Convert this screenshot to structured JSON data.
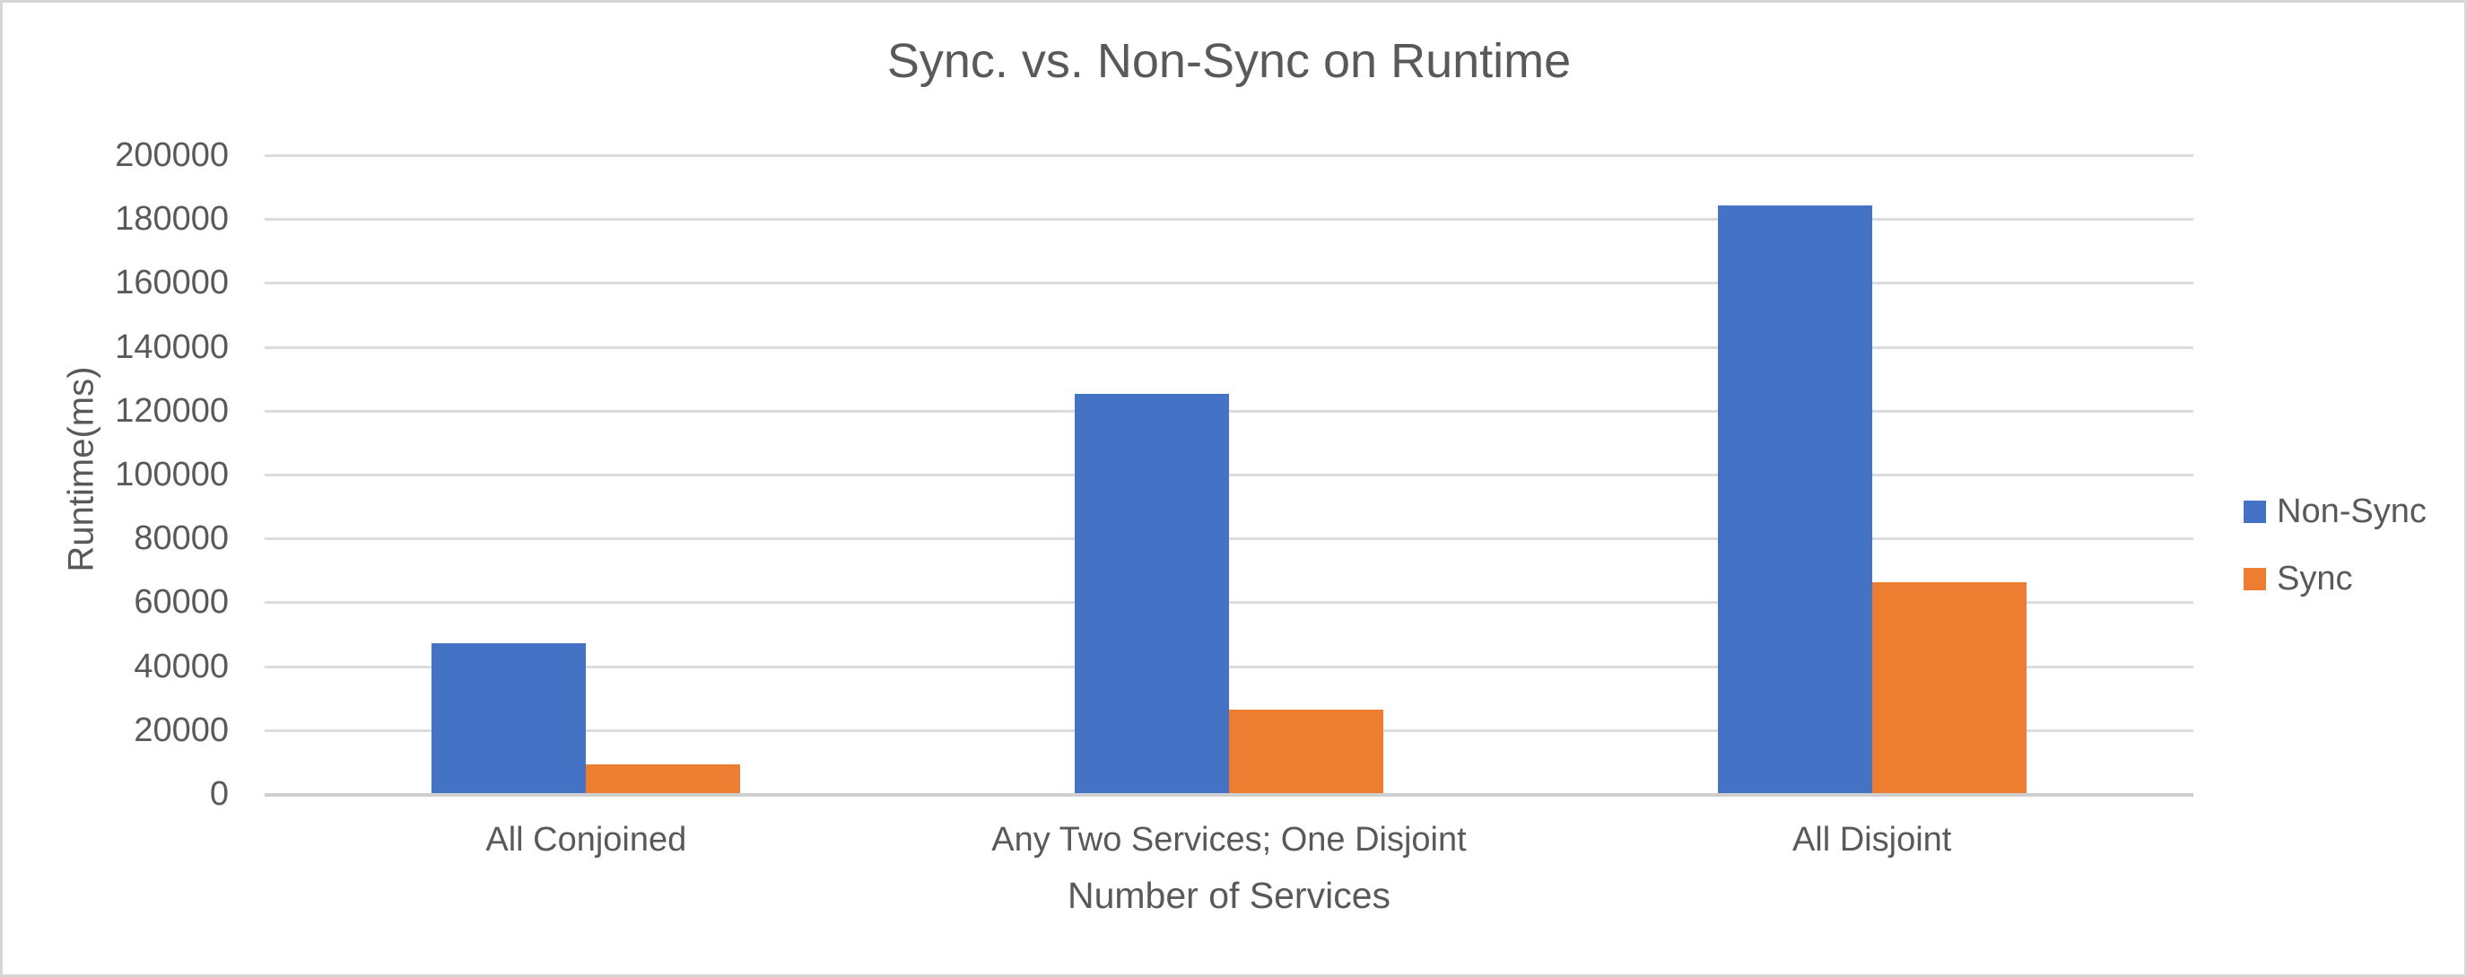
{
  "chart_data": {
    "type": "bar",
    "title": "Sync. vs. Non-Sync on Runtime",
    "categories": [
      "All Conjoined",
      "Any Two Services; One Disjoint",
      "All Disjoint"
    ],
    "series": [
      {
        "name": "Non-Sync",
        "color": "#4472C4",
        "values": [
          47000,
          125000,
          184000
        ]
      },
      {
        "name": "Sync",
        "color": "#ED7D31",
        "values": [
          9000,
          26000,
          66000
        ]
      }
    ],
    "xlabel": "Number of Services",
    "ylabel": "Runtime(ms)",
    "ylim": [
      0,
      200000
    ],
    "ytick_step": 20000,
    "ytick_labels": [
      "0",
      "20000",
      "40000",
      "60000",
      "80000",
      "100000",
      "120000",
      "140000",
      "160000",
      "180000",
      "200000"
    ],
    "grid": "horizontal",
    "legend_position": "right",
    "colors": {
      "text": "#595959",
      "gridline": "#dcdcdc",
      "axis_line": "#cfcfcf",
      "canvas_border": "#d6d6d6",
      "background": "#ffffff"
    }
  }
}
